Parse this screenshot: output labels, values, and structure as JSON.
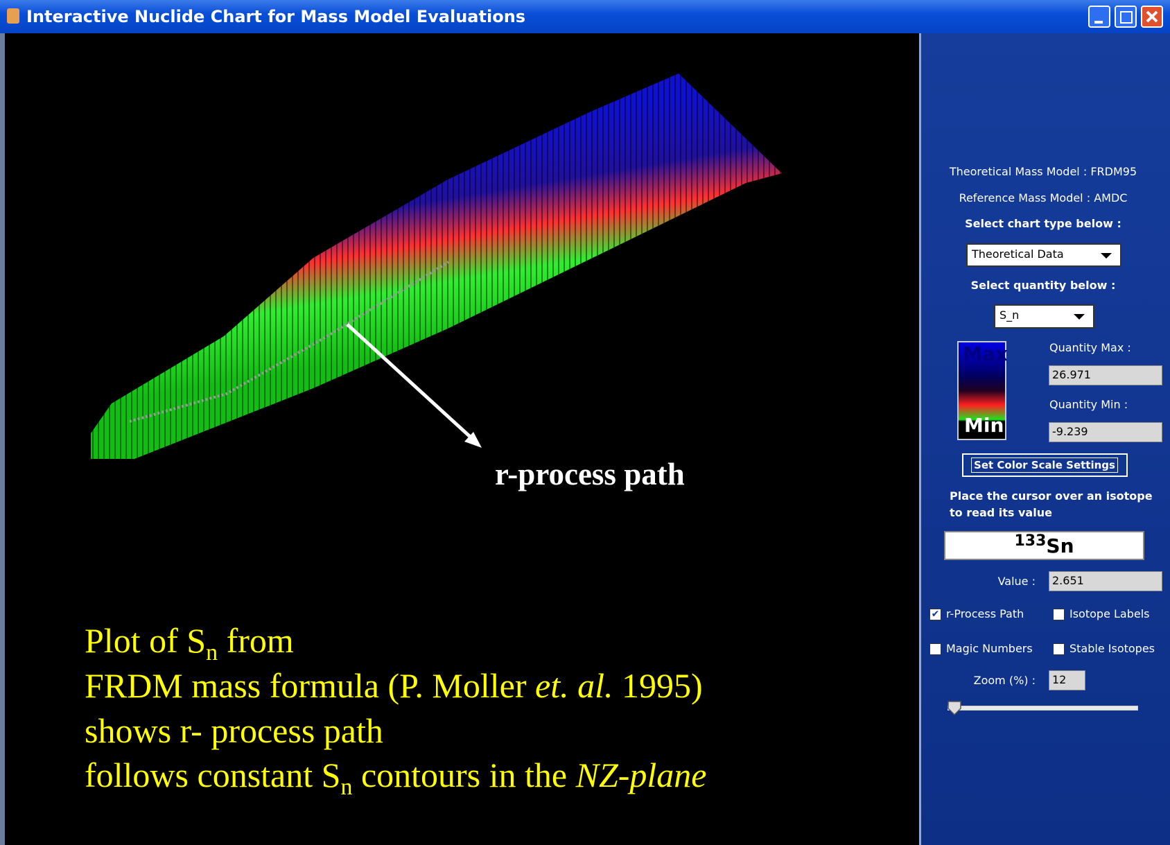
{
  "window": {
    "title": "Interactive Nuclide Chart for Mass Model Evaluations"
  },
  "plot": {
    "annotation": "r-process path",
    "caption": [
      [
        "Plot of S",
        "n",
        " from"
      ],
      [
        "FRDM mass formula (P. Moller ",
        "et. al.",
        " 1995)"
      ],
      [
        "shows r- process path"
      ],
      [
        "follows constant S",
        "n",
        " contours in the ",
        "NZ-plane"
      ]
    ]
  },
  "panel": {
    "theoretical_model": "Theoretical Mass Model : FRDM95",
    "reference_model": "Reference Mass Model : AMDC",
    "chart_type_prompt": "Select chart type below :",
    "chart_type": "Theoretical Data",
    "quantity_prompt": "Select quantity below :",
    "quantity": "S_n",
    "legend": {
      "max": "Max",
      "min": "Min"
    },
    "quantity_max": {
      "label": "Quantity Max :",
      "value": 26.971
    },
    "quantity_min": {
      "label": "Quantity Min :",
      "value": -9.239
    },
    "button": "Set Color Scale Settings",
    "cursor_hint": [
      "Place the cursor over an isotope",
      "to read its value"
    ],
    "isotope": {
      "mass": 133,
      "symbol": "Sn"
    },
    "value": {
      "label": "Value :",
      "value": 2.651
    },
    "checkboxes": [
      {
        "label": "r-Process Path",
        "checked": true
      },
      {
        "label": "Isotope Labels",
        "checked": false
      },
      {
        "label": "Magic Numbers",
        "checked": false
      },
      {
        "label": "Stable Isotopes",
        "checked": false
      }
    ],
    "zoom": {
      "label": "Zoom (%) :",
      "value": 12
    }
  }
}
